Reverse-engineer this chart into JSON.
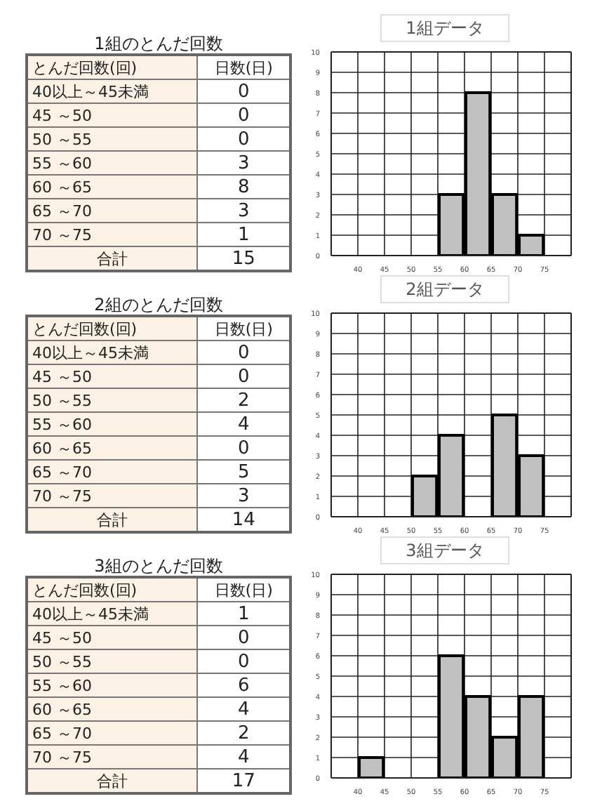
{
  "chart_data": [
    {
      "type": "other",
      "title": "1組のとんだ回数",
      "xlabel": "とんだ回数(回)",
      "ylabel": "日数(日)",
      "categories": [
        "40以上～45未満",
        "45 ～50",
        "50 ～55",
        "55 ～60",
        "60 ～65",
        "65 ～70",
        "70 ～75",
        "合計"
      ],
      "values": [
        0,
        0,
        0,
        3,
        8,
        3,
        1,
        15
      ],
      "data_labels": true
    },
    {
      "type": "histogram",
      "title": "1組データ",
      "bins": [
        40,
        45,
        50,
        55,
        60,
        65,
        70,
        75
      ],
      "values": [
        0,
        0,
        0,
        3,
        8,
        3,
        1
      ],
      "color": "#c0c0c0",
      "xlim": [
        35,
        80
      ],
      "xticks": [
        40,
        45,
        50,
        55,
        60,
        65,
        70,
        75
      ],
      "ylim": [
        0,
        10
      ],
      "yticks": [
        0,
        1,
        2,
        3,
        4,
        5,
        6,
        7,
        8,
        9,
        10
      ],
      "grid": true
    },
    {
      "type": "other",
      "title": "2組のとんだ回数",
      "xlabel": "とんだ回数(回)",
      "ylabel": "日数(日)",
      "categories": [
        "40以上～45未満",
        "45 ～50",
        "50 ～55",
        "55 ～60",
        "60 ～65",
        "65 ～70",
        "70 ～75",
        "合計"
      ],
      "values": [
        0,
        0,
        2,
        4,
        0,
        5,
        3,
        14
      ],
      "data_labels": true
    },
    {
      "type": "histogram",
      "title": "2組データ",
      "bins": [
        40,
        45,
        50,
        55,
        60,
        65,
        70,
        75
      ],
      "values": [
        0,
        0,
        2,
        4,
        0,
        5,
        3
      ],
      "color": "#c0c0c0",
      "xlim": [
        35,
        80
      ],
      "xticks": [
        40,
        45,
        50,
        55,
        60,
        65,
        70,
        75
      ],
      "ylim": [
        0,
        10
      ],
      "yticks": [
        0,
        1,
        2,
        3,
        4,
        5,
        6,
        7,
        8,
        9,
        10
      ],
      "grid": true
    },
    {
      "type": "other",
      "title": "3組のとんだ回数",
      "xlabel": "とんだ回数(回)",
      "ylabel": "日数(日)",
      "categories": [
        "40以上～45未満",
        "45 ～50",
        "50 ～55",
        "55 ～60",
        "60 ～65",
        "65 ～70",
        "70 ～75",
        "合計"
      ],
      "values": [
        1,
        0,
        0,
        6,
        4,
        2,
        4,
        17
      ],
      "data_labels": true
    },
    {
      "type": "histogram",
      "title": "3組データ",
      "bins": [
        40,
        45,
        50,
        55,
        60,
        65,
        70,
        75
      ],
      "values": [
        1,
        0,
        0,
        6,
        4,
        2,
        4
      ],
      "color": "#c0c0c0",
      "xlim": [
        35,
        80
      ],
      "xticks": [
        40,
        45,
        50,
        55,
        60,
        65,
        70,
        75
      ],
      "ylim": [
        0,
        10
      ],
      "yticks": [
        0,
        1,
        2,
        3,
        4,
        5,
        6,
        7,
        8,
        9,
        10
      ],
      "grid": true
    }
  ]
}
